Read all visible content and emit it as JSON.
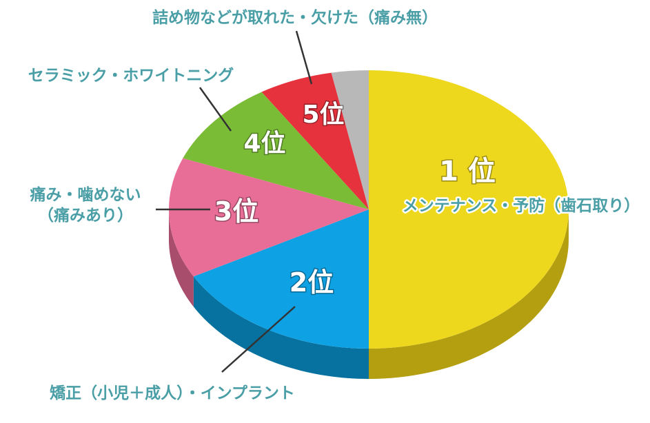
{
  "chart_data": {
    "type": "pie",
    "style": "3d",
    "start": "12 o'clock",
    "direction": "clockwise",
    "slices": [
      {
        "rank": "1 位",
        "category": "メンテナンス・予防（歯石取り）",
        "value": 50,
        "color": "#eed81d",
        "side_color": "#b39f10"
      },
      {
        "rank": "2位",
        "category": "矯正（小児＋成人）・インプラント",
        "value": 17,
        "color": "#0ea2e5",
        "side_color": "#07729f"
      },
      {
        "rank": "3位",
        "category_lines": [
          "痛み・噛めない",
          "（痛みあり）"
        ],
        "value": 14,
        "color": "#e96e97",
        "side_color": "#a84d6b"
      },
      {
        "rank": "4位",
        "category": "セラミック・ホワイトニング",
        "value": 10,
        "color": "#7bbc36",
        "side_color": "#577f24"
      },
      {
        "rank": "5位",
        "category": "詰め物などが取れた・欠けた（痛み無）",
        "value": 6,
        "color": "#e5323d",
        "side_color": "#a42128"
      },
      {
        "rank": "",
        "category": "",
        "value": 3,
        "color": "#b8b8b8",
        "side_color": "#868686"
      }
    ]
  }
}
